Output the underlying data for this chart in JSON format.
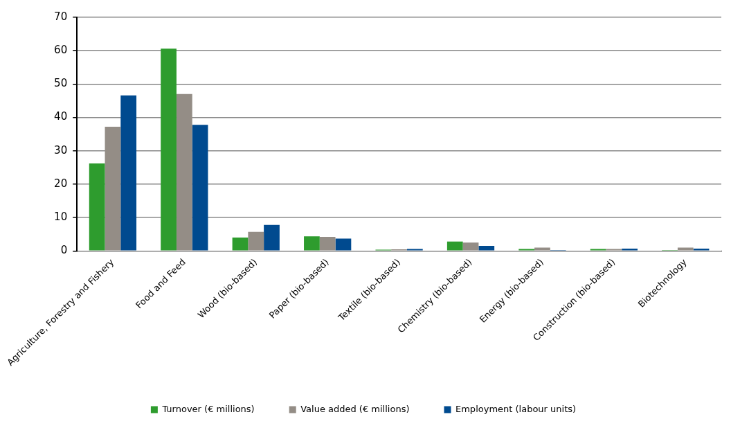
{
  "chart_data": {
    "type": "bar",
    "categories": [
      "Agriculture, Forestry and Fishery",
      "Food and Feed",
      "Wood (bio-based)",
      "Paper (bio-based)",
      "Textile (bio-based)",
      "Chemistry (bio-based)",
      "Energy (bio-based)",
      "Construction (bio-based)",
      "Biotechnology"
    ],
    "series": [
      {
        "name": "Turnover (€ millions)",
        "color": "#2e9c2e",
        "values": [
          26.2,
          60.6,
          4.0,
          4.4,
          0.4,
          2.8,
          0.6,
          0.6,
          0.3
        ]
      },
      {
        "name": "Value added (€ millions)",
        "color": "#948d86",
        "values": [
          37.2,
          47.0,
          5.7,
          4.2,
          0.5,
          2.5,
          1.0,
          0.6,
          1.0
        ]
      },
      {
        "name": "Employment (labour units)",
        "color": "#004a8f",
        "values": [
          46.6,
          37.8,
          7.8,
          3.7,
          0.6,
          1.5,
          0.3,
          0.7,
          0.7
        ]
      }
    ],
    "ylim": [
      0,
      70
    ],
    "yticks": [
      0,
      10,
      20,
      30,
      40,
      50,
      60,
      70
    ],
    "grid": "y",
    "legend": "bottom"
  }
}
